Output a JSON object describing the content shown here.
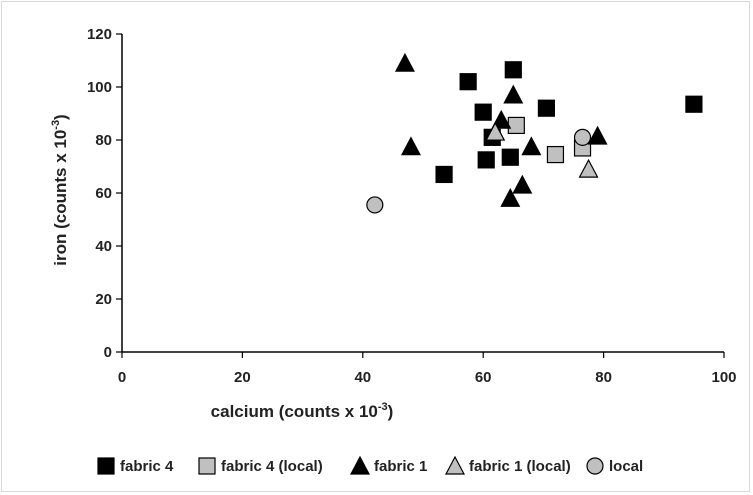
{
  "chart_data": {
    "type": "scatter",
    "title": "",
    "xlabel": {
      "main": "calcium  (counts x 10",
      "sup": "-3",
      "end": ")"
    },
    "ylabel": {
      "main": "iron (counts x 10",
      "sup": "-3",
      "end": ")"
    },
    "xlim": [
      0,
      100
    ],
    "ylim": [
      0,
      120
    ],
    "xticks": [
      0,
      20,
      40,
      60,
      80,
      100
    ],
    "yticks": [
      0,
      20,
      40,
      60,
      80,
      100,
      120
    ],
    "grid": false,
    "legend_position": "bottom",
    "series": [
      {
        "name": "fabric 4",
        "marker": "square",
        "color": "#000000",
        "x": [
          57.5,
          60,
          61.5,
          60.5,
          65,
          64.5,
          53.5,
          70.5,
          95
        ],
        "y": [
          102,
          90.5,
          81,
          72.5,
          106.5,
          73.5,
          67,
          92,
          93.5
        ]
      },
      {
        "name": "fabric 4 (local)",
        "marker": "square",
        "color": "#c0c0c0",
        "x": [
          65.5,
          72,
          76.5
        ],
        "y": [
          85.5,
          74.5,
          77
        ]
      },
      {
        "name": "fabric 1",
        "marker": "triangle",
        "color": "#000000",
        "x": [
          47,
          48,
          63,
          65,
          68,
          66.5,
          64.5,
          79
        ],
        "y": [
          109,
          77.5,
          87.5,
          97,
          77.5,
          63,
          58,
          81.5
        ]
      },
      {
        "name": "fabric 1 (local)",
        "marker": "triangle",
        "color": "#c0c0c0",
        "x": [
          62,
          77.5
        ],
        "y": [
          83,
          69
        ]
      },
      {
        "name": "local",
        "marker": "circle",
        "color": "#c0c0c0",
        "x": [
          42,
          76.5
        ],
        "y": [
          55.5,
          81
        ]
      }
    ]
  }
}
